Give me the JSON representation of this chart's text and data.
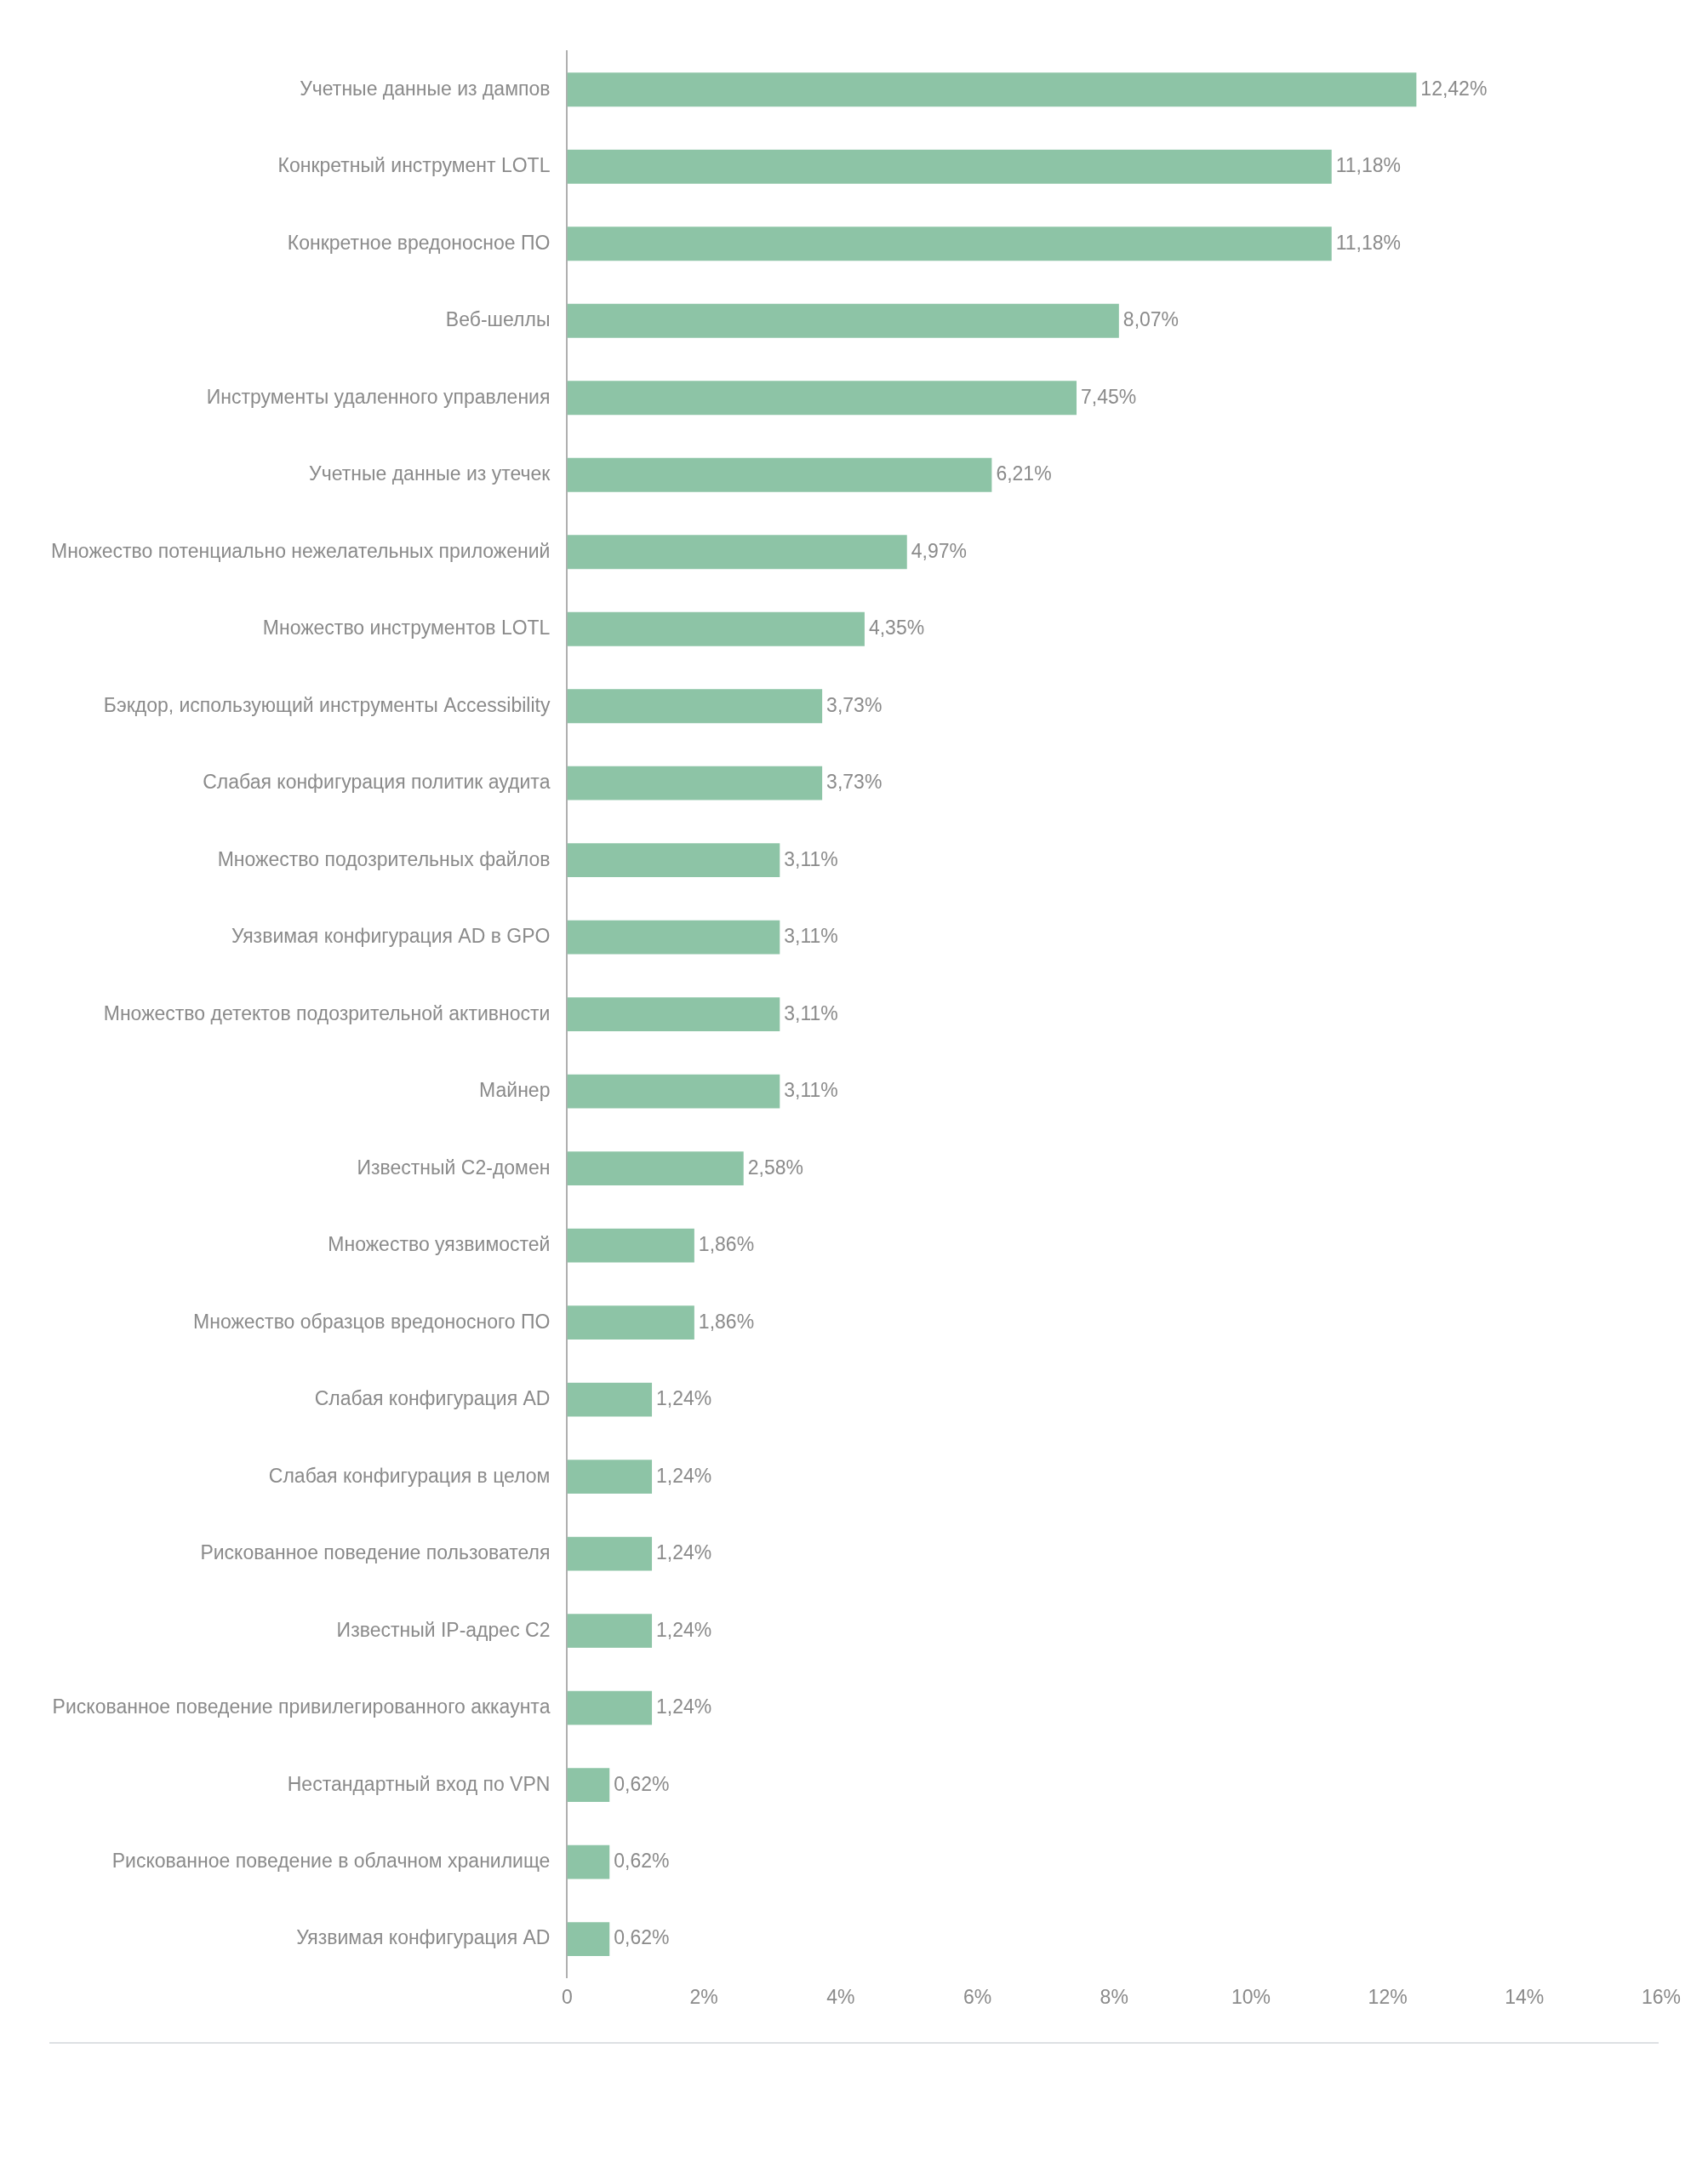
{
  "chart_data": {
    "type": "bar",
    "orientation": "horizontal",
    "categories": [
      "Учетные данные из дампов",
      "Конкретный инструмент LOTL",
      "Конкретное вредоносное ПО",
      "Веб-шеллы",
      "Инструменты удаленного управления",
      "Учетные данные из утечек",
      "Множество потенциально нежелательных приложений",
      "Множество инструментов LOTL",
      "Бэкдор, использующий инструменты Accessibility",
      "Слабая конфигурация политик аудита",
      "Множество подозрительных файлов",
      "Уязвимая конфигурация AD в GPO",
      "Множество детектов подозрительной активности",
      "Майнер",
      "Известный C2-домен",
      "Множество уязвимостей",
      "Множество образцов вредоносного ПО",
      "Слабая конфигурация AD",
      "Слабая конфигурация в целом",
      "Рискованное поведение пользователя",
      "Известный IP-адрес C2",
      "Рискованное поведение привилегированного аккаунта",
      "Нестандартный вход по VPN",
      "Рискованное поведение в облачном хранилище",
      "Уязвимая конфигурация AD"
    ],
    "values": [
      12.42,
      11.18,
      11.18,
      8.07,
      7.45,
      6.21,
      4.97,
      4.35,
      3.73,
      3.73,
      3.11,
      3.11,
      3.11,
      3.11,
      2.58,
      1.86,
      1.86,
      1.24,
      1.24,
      1.24,
      1.24,
      1.24,
      0.62,
      0.62,
      0.62
    ],
    "value_labels": [
      "12,42%",
      "11,18%",
      "11,18%",
      "8,07%",
      "7,45%",
      "6,21%",
      "4,97%",
      "4,35%",
      "3,73%",
      "3,73%",
      "3,11%",
      "3,11%",
      "3,11%",
      "3,11%",
      "2,58%",
      "1,86%",
      "1,86%",
      "1,24%",
      "1,24%",
      "1,24%",
      "1,24%",
      "1,24%",
      "0,62%",
      "0,62%",
      "0,62%"
    ],
    "color": "#8dc4a6",
    "xlim": [
      0,
      16
    ],
    "xticks": [
      0,
      {
        "value": 2,
        "label": "2%"
      },
      {
        "value": 4,
        "label": "4%"
      },
      {
        "value": 6,
        "label": "6%"
      },
      {
        "value": 8,
        "label": "8%"
      },
      {
        "value": 10,
        "label": "10%"
      },
      {
        "value": 12,
        "label": "12%"
      },
      {
        "value": 14,
        "label": "14%"
      },
      {
        "value": 16,
        "label": "16%"
      }
    ],
    "grid": false,
    "legend": false
  }
}
